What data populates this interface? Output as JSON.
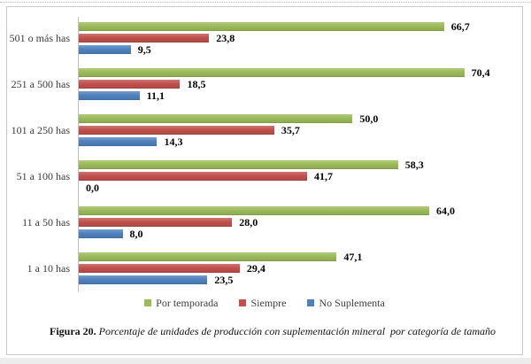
{
  "figure": {
    "caption_label": "Figura 20.",
    "caption_text": " Porcentaje de unidades de producción con suplementación mineral  por categoría de tamaño"
  },
  "chart_data": {
    "type": "bar",
    "orientation": "horizontal",
    "title": "",
    "xlabel": "",
    "ylabel": "",
    "xlim": [
      0,
      80
    ],
    "grid": false,
    "legend_position": "bottom",
    "value_format": "comma-decimal",
    "categories": [
      "501 o más has",
      "251 a 500 has",
      "101 a 250 has",
      "51 a 100 has",
      "11 a 50 has",
      "1 a 10 has"
    ],
    "series": [
      {
        "name": "Por temporada",
        "color": "#9BBB59",
        "values": [
          66.7,
          70.4,
          50.0,
          58.3,
          64.0,
          47.1
        ],
        "labels": [
          "66,7",
          "70,4",
          "50,0",
          "58,3",
          "64,0",
          "47,1"
        ]
      },
      {
        "name": "Siempre",
        "color": "#C0504D",
        "values": [
          23.8,
          18.5,
          35.7,
          41.7,
          28.0,
          29.4
        ],
        "labels": [
          "23,8",
          "18,5",
          "35,7",
          "41,7",
          "28,0",
          "29,4"
        ]
      },
      {
        "name": "No Suplementa",
        "color": "#4F81BD",
        "values": [
          9.5,
          11.1,
          14.3,
          0.0,
          8.0,
          23.5
        ],
        "labels": [
          "9,5",
          "11,1",
          "14,3",
          "0,0",
          "8,0",
          "23,5"
        ]
      }
    ]
  },
  "colors": {
    "figure_border": "#c9c9c9",
    "axis_line": "#bfbfbf",
    "category_text": "#3a3a3a",
    "value_text": "#000000",
    "legend_text": "#3f3f3f",
    "page_bottom_strip": "#ececec"
  }
}
